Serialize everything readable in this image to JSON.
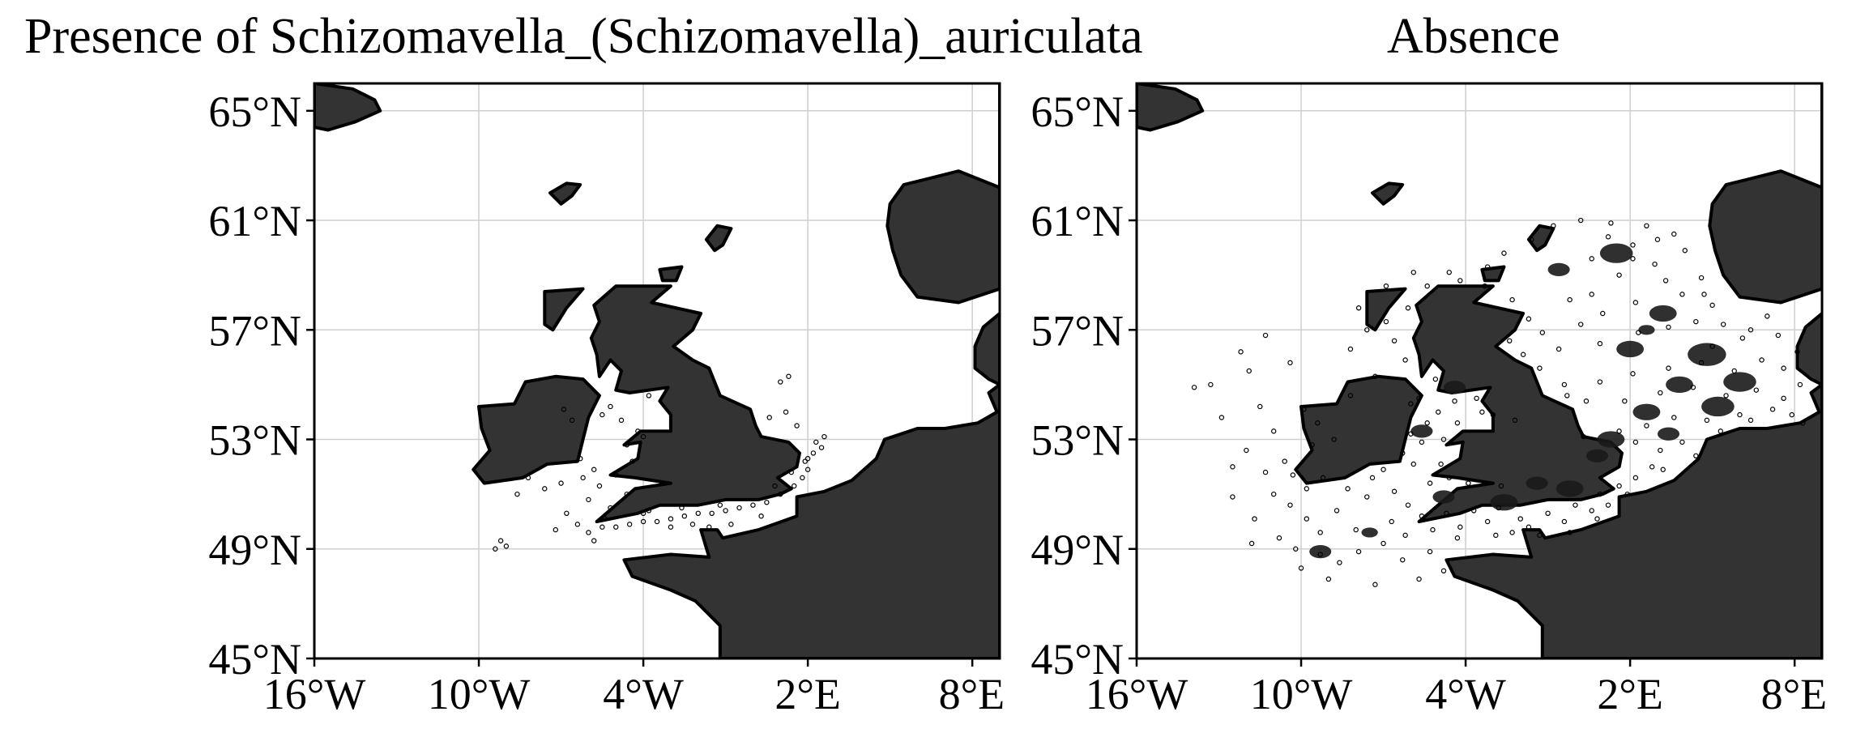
{
  "titles": {
    "left": "Presence of Schizomavella_(Schizomavella)_auriculata",
    "right": "Absence"
  },
  "lat_ticks": [
    "65°N",
    "61°N",
    "57°N",
    "53°N",
    "49°N",
    "45°N"
  ],
  "lon_ticks": [
    "16°W",
    "10°W",
    "4°W",
    "2°E",
    "8°E"
  ],
  "extent": {
    "lon": [
      -16,
      9
    ],
    "lat": [
      45,
      66
    ]
  },
  "colors": {
    "land": "#333333",
    "grid": "#cfcfcf",
    "frame": "#000000",
    "ocean": "#ffffff"
  },
  "panels": [
    {
      "name": "presence",
      "points": [
        [
          2.3,
          52.9
        ],
        [
          2.5,
          52.7
        ],
        [
          2.2,
          52.5
        ],
        [
          1.9,
          52.2
        ],
        [
          2.0,
          51.9
        ],
        [
          1.8,
          51.6
        ],
        [
          1.5,
          51.3
        ],
        [
          1.0,
          51.0
        ],
        [
          0.5,
          50.7
        ],
        [
          0.0,
          50.6
        ],
        [
          -0.5,
          50.5
        ],
        [
          -1.0,
          50.4
        ],
        [
          -1.5,
          50.3
        ],
        [
          -2.0,
          50.3
        ],
        [
          -2.5,
          50.2
        ],
        [
          -3.0,
          50.1
        ],
        [
          -3.5,
          50.0
        ],
        [
          -4.0,
          50.0
        ],
        [
          -4.5,
          49.9
        ],
        [
          -5.0,
          49.8
        ],
        [
          -5.5,
          49.8
        ],
        [
          -6.0,
          49.6
        ],
        [
          -6.4,
          49.9
        ],
        [
          -5.2,
          50.5
        ],
        [
          -4.6,
          51.0
        ],
        [
          -5.6,
          51.3
        ],
        [
          -5.0,
          51.7
        ],
        [
          -4.4,
          52.2
        ],
        [
          -4.6,
          52.8
        ],
        [
          -4.2,
          53.3
        ],
        [
          -4.8,
          53.7
        ],
        [
          -5.5,
          53.9
        ],
        [
          -5.2,
          54.2
        ],
        [
          -3.8,
          54.6
        ],
        [
          -5.8,
          51.9
        ],
        [
          -6.3,
          52.3
        ],
        [
          -6.2,
          51.6
        ],
        [
          -7.0,
          51.4
        ],
        [
          -7.6,
          51.2
        ],
        [
          -8.2,
          51.6
        ],
        [
          1.6,
          53.5
        ],
        [
          1.2,
          54.0
        ],
        [
          1.0,
          55.1
        ],
        [
          1.3,
          55.3
        ],
        [
          0.6,
          53.8
        ],
        [
          -9.0,
          49.1
        ],
        [
          -9.2,
          49.3
        ],
        [
          -9.4,
          49.0
        ],
        [
          -8.6,
          51.0
        ],
        [
          -3.8,
          50.4
        ],
        [
          -2.6,
          50.5
        ],
        [
          -1.2,
          50.6
        ],
        [
          0.8,
          51.3
        ],
        [
          1.4,
          51.8
        ],
        [
          2.0,
          52.3
        ],
        [
          2.6,
          53.1
        ],
        [
          -6.8,
          50.3
        ],
        [
          -6.0,
          50.8
        ],
        [
          -5.4,
          50.1
        ],
        [
          -4.0,
          50.3
        ],
        [
          -3.0,
          49.8
        ],
        [
          -2.2,
          49.9
        ],
        [
          -1.6,
          49.8
        ],
        [
          -0.8,
          49.9
        ],
        [
          0.3,
          50.2
        ],
        [
          -7.2,
          49.7
        ],
        [
          -5.8,
          49.3
        ],
        [
          -6.6,
          53.7
        ],
        [
          -6.9,
          54.1
        ],
        [
          -4.0,
          53.1
        ]
      ]
    },
    {
      "name": "absence",
      "points": [
        [
          -13.3,
          55.0
        ],
        [
          -11.5,
          54.2
        ],
        [
          -11.0,
          53.3
        ],
        [
          -12.0,
          52.6
        ],
        [
          -11.3,
          51.8
        ],
        [
          -12.5,
          50.9
        ],
        [
          -11.7,
          50.1
        ],
        [
          -10.8,
          49.4
        ],
        [
          -10.0,
          48.3
        ],
        [
          -9.3,
          48.8
        ],
        [
          -10.4,
          50.6
        ],
        [
          -11.0,
          51.0
        ],
        [
          -10.6,
          52.2
        ],
        [
          -9.6,
          52.8
        ],
        [
          -9.2,
          51.6
        ],
        [
          -8.7,
          50.4
        ],
        [
          -8.0,
          49.7
        ],
        [
          -7.6,
          50.9
        ],
        [
          -7.0,
          51.9
        ],
        [
          -6.3,
          52.5
        ],
        [
          -6.0,
          53.2
        ],
        [
          -5.4,
          53.6
        ],
        [
          -5.7,
          54.5
        ],
        [
          -5.1,
          55.2
        ],
        [
          -6.2,
          55.9
        ],
        [
          -6.6,
          56.6
        ],
        [
          -6.9,
          57.3
        ],
        [
          -6.1,
          57.8
        ],
        [
          -5.4,
          58.6
        ],
        [
          -4.6,
          59.1
        ],
        [
          -3.2,
          59.3
        ],
        [
          -2.6,
          59.8
        ],
        [
          -1.6,
          60.3
        ],
        [
          -0.8,
          60.8
        ],
        [
          0.2,
          61.0
        ],
        [
          1.3,
          60.9
        ],
        [
          2.6,
          60.8
        ],
        [
          3.6,
          60.5
        ],
        [
          0.6,
          59.6
        ],
        [
          1.6,
          59.0
        ],
        [
          2.9,
          59.4
        ],
        [
          4.0,
          59.9
        ],
        [
          4.6,
          58.9
        ],
        [
          5.0,
          57.9
        ],
        [
          3.9,
          58.3
        ],
        [
          2.2,
          58.0
        ],
        [
          1.0,
          57.6
        ],
        [
          0.2,
          57.2
        ],
        [
          -1.2,
          56.9
        ],
        [
          -0.6,
          56.3
        ],
        [
          0.9,
          56.5
        ],
        [
          2.3,
          56.9
        ],
        [
          3.4,
          57.1
        ],
        [
          4.4,
          57.3
        ],
        [
          5.4,
          57.2
        ],
        [
          6.4,
          57.0
        ],
        [
          7.4,
          56.8
        ],
        [
          8.1,
          56.2
        ],
        [
          7.6,
          55.6
        ],
        [
          6.8,
          55.9
        ],
        [
          5.8,
          55.5
        ],
        [
          4.6,
          55.8
        ],
        [
          3.4,
          55.6
        ],
        [
          2.1,
          55.4
        ],
        [
          0.9,
          55.1
        ],
        [
          -0.4,
          55.0
        ],
        [
          0.4,
          54.4
        ],
        [
          1.8,
          54.4
        ],
        [
          3.1,
          54.7
        ],
        [
          4.3,
          54.9
        ],
        [
          5.5,
          54.6
        ],
        [
          6.6,
          54.8
        ],
        [
          7.6,
          54.5
        ],
        [
          8.2,
          55.0
        ],
        [
          7.2,
          54.1
        ],
        [
          6.0,
          53.9
        ],
        [
          4.8,
          53.7
        ],
        [
          3.6,
          53.8
        ],
        [
          2.6,
          53.5
        ],
        [
          1.6,
          53.3
        ],
        [
          2.2,
          52.9
        ],
        [
          3.1,
          52.6
        ],
        [
          3.9,
          52.9
        ],
        [
          4.4,
          52.4
        ],
        [
          2.8,
          52.0
        ],
        [
          2.2,
          51.6
        ],
        [
          1.6,
          51.3
        ],
        [
          0.9,
          51.0
        ],
        [
          0.0,
          50.6
        ],
        [
          -1.0,
          50.3
        ],
        [
          -2.0,
          50.1
        ],
        [
          -3.2,
          50.0
        ],
        [
          -4.2,
          49.8
        ],
        [
          -5.2,
          49.7
        ],
        [
          -6.2,
          49.5
        ],
        [
          -7.0,
          49.2
        ],
        [
          -7.9,
          48.9
        ],
        [
          -8.6,
          48.5
        ],
        [
          -6.3,
          48.6
        ],
        [
          -5.3,
          48.9
        ],
        [
          -4.3,
          49.4
        ],
        [
          -2.9,
          49.5
        ],
        [
          -1.7,
          49.8
        ],
        [
          -0.4,
          50.0
        ],
        [
          0.6,
          50.4
        ],
        [
          -8.8,
          53.0
        ],
        [
          -9.4,
          53.6
        ],
        [
          -8.2,
          54.6
        ],
        [
          -7.3,
          55.3
        ],
        [
          -8.2,
          56.3
        ],
        [
          -7.6,
          57.0
        ],
        [
          -7.9,
          57.8
        ],
        [
          -6.9,
          58.6
        ],
        [
          -5.9,
          59.1
        ],
        [
          -13.9,
          54.9
        ],
        [
          -12.9,
          53.8
        ],
        [
          -11.9,
          55.5
        ],
        [
          -11.3,
          56.8
        ],
        [
          -12.2,
          56.2
        ],
        [
          -10.4,
          55.8
        ],
        [
          -9.9,
          54.1
        ],
        [
          -12.5,
          52.0
        ],
        [
          -11.8,
          49.2
        ],
        [
          -10.2,
          49.0
        ],
        [
          -9.0,
          47.9
        ],
        [
          -7.3,
          47.7
        ],
        [
          -5.7,
          47.9
        ],
        [
          -4.8,
          48.2
        ],
        [
          -2.2,
          53.7
        ],
        [
          -3.4,
          54.0
        ],
        [
          -4.9,
          52.1
        ],
        [
          -5.3,
          51.4
        ],
        [
          -3.9,
          51.4
        ],
        [
          -2.7,
          51.3
        ],
        [
          0.3,
          53.1
        ],
        [
          -0.3,
          54.6
        ],
        [
          -1.3,
          55.6
        ],
        [
          -1.9,
          56.1
        ],
        [
          -2.4,
          56.6
        ],
        [
          -1.7,
          57.4
        ],
        [
          -2.3,
          58.1
        ],
        [
          -3.3,
          58.6
        ],
        [
          -4.2,
          58.8
        ],
        [
          5.0,
          56.4
        ],
        [
          6.1,
          56.7
        ],
        [
          7.0,
          57.5
        ],
        [
          4.7,
          58.3
        ],
        [
          3.3,
          58.8
        ],
        [
          2.1,
          59.6
        ],
        [
          1.2,
          60.4
        ],
        [
          2.1,
          60.1
        ],
        [
          3.0,
          60.3
        ],
        [
          0.6,
          58.3
        ],
        [
          -0.2,
          58.1
        ],
        [
          7.9,
          53.9
        ],
        [
          8.3,
          53.6
        ],
        [
          6.4,
          53.7
        ],
        [
          5.3,
          53.3
        ],
        [
          3.2,
          51.9
        ],
        [
          1.9,
          51.0
        ],
        [
          -6.6,
          51.1
        ],
        [
          -6.1,
          50.6
        ],
        [
          -5.6,
          50.2
        ],
        [
          -7.4,
          51.6
        ],
        [
          -8.3,
          51.2
        ],
        [
          -9.8,
          51.2
        ],
        [
          -10.3,
          51.7
        ],
        [
          -9.8,
          50.1
        ],
        [
          -9.3,
          49.6
        ],
        [
          -6.7,
          50.0
        ],
        [
          -4.7,
          50.3
        ],
        [
          -3.7,
          50.4
        ],
        [
          -2.8,
          50.5
        ],
        [
          -2.3,
          49.6
        ],
        [
          -1.3,
          49.5
        ],
        [
          -0.2,
          49.6
        ],
        [
          0.8,
          50.1
        ],
        [
          1.2,
          50.6
        ],
        [
          -3.0,
          53.9
        ],
        [
          -3.6,
          54.5
        ],
        [
          -4.4,
          54.4
        ],
        [
          -5.0,
          54.0
        ],
        [
          -6.0,
          54.3
        ],
        [
          -4.3,
          53.6
        ],
        [
          -4.8,
          53.0
        ],
        [
          -5.6,
          52.9
        ],
        [
          -5.9,
          52.1
        ],
        [
          -4.6,
          51.6
        ]
      ],
      "blobs": [
        [
          1.5,
          59.8,
          0.6
        ],
        [
          3.2,
          57.6,
          0.5
        ],
        [
          4.8,
          56.1,
          0.7
        ],
        [
          2.0,
          56.3,
          0.5
        ],
        [
          6.0,
          55.1,
          0.6
        ],
        [
          3.8,
          55.0,
          0.5
        ],
        [
          5.2,
          54.2,
          0.6
        ],
        [
          2.6,
          54.0,
          0.5
        ],
        [
          1.3,
          53.0,
          0.5
        ],
        [
          3.4,
          53.2,
          0.4
        ],
        [
          -0.2,
          51.2,
          0.5
        ],
        [
          -2.6,
          50.7,
          0.5
        ],
        [
          -4.8,
          50.9,
          0.4
        ],
        [
          -5.6,
          53.3,
          0.4
        ],
        [
          -4.4,
          54.9,
          0.4
        ],
        [
          -9.3,
          48.9,
          0.4
        ],
        [
          -7.5,
          49.6,
          0.3
        ],
        [
          -1.4,
          51.4,
          0.4
        ],
        [
          0.8,
          52.4,
          0.4
        ],
        [
          2.6,
          57.0,
          0.3
        ],
        [
          -0.6,
          59.2,
          0.4
        ]
      ]
    }
  ]
}
